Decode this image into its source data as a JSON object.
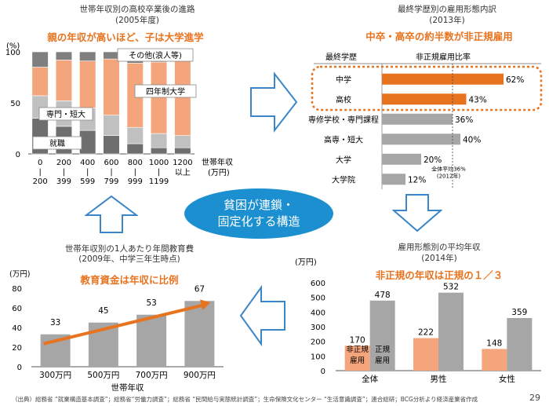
{
  "page_number": "29",
  "source_note": "（出典）総務省 “就業構造基本調査”；総務省“労働力調査”；総務省 “民間給与実態統計調査”；生命保険文化センター “生活意識調査”；連合総研；BCG分析より経済産業省作成",
  "center_oval": {
    "line1": "貧困が連鎖・",
    "line2": "固定化する構造"
  },
  "colors": {
    "orange": "#f4a57b",
    "orange_dark": "#e8731f",
    "gray": "#a6a6a6",
    "gray_dark": "#7f7f7f",
    "blue": "#1b8fcf",
    "arrow_outline": "#3a86c8"
  },
  "icons": [
    "arrow-right-icon",
    "arrow-down-icon",
    "arrow-left-icon",
    "arrow-up-icon"
  ],
  "chart_data": [
    {
      "id": "top-left",
      "type": "bar",
      "stacked": true,
      "title": "世帯年収別の高校卒業後の進路",
      "subtitle": "(2005年度)",
      "headline": "親の年収が高いほど、子は大学進学",
      "ylabel": "(%)",
      "xlabel": "世帯年収",
      "xunit": "(万円)",
      "ylim": [
        0,
        100
      ],
      "yticks": [
        "100",
        "50",
        "0"
      ],
      "categories": [
        {
          "top": "0",
          "sep": "|",
          "bottom": "200"
        },
        {
          "top": "200",
          "sep": "|",
          "bottom": "399"
        },
        {
          "top": "400",
          "sep": "|",
          "bottom": "599"
        },
        {
          "top": "600",
          "sep": "|",
          "bottom": "799"
        },
        {
          "top": "800",
          "sep": "|",
          "bottom": "999"
        },
        {
          "top": "1000",
          "sep": "|",
          "bottom": "1199"
        },
        {
          "top": "1200",
          "sep": "",
          "bottom": "以上"
        }
      ],
      "series": [
        {
          "name": "就職",
          "values": [
            35,
            27,
            23,
            18,
            10,
            6,
            6
          ]
        },
        {
          "name": "専門・短大",
          "values": [
            22,
            25,
            22,
            20,
            16,
            14,
            12
          ]
        },
        {
          "name": "四年制大学",
          "values": [
            28,
            40,
            46,
            55,
            63,
            70,
            74
          ]
        },
        {
          "name": "その他(浪人等)",
          "values": [
            15,
            8,
            9,
            7,
            11,
            10,
            8
          ]
        }
      ],
      "labels": {
        "shushoku": "就職",
        "senmon": "専門・短大",
        "daigaku": "四年制大学",
        "sonota": "その他(浪人等)"
      }
    },
    {
      "id": "top-right",
      "type": "bar",
      "orientation": "horizontal",
      "title": "最終学歴別の雇用形態内訳",
      "subtitle": "(2013年)",
      "headline": "中卒・高卒の約半数が非正規雇用",
      "col_header_1": "最終学歴",
      "col_header_2": "非正規雇用比率",
      "categories": [
        "中学",
        "高校",
        "専修学校・専門課程",
        "高専・短大",
        "大学",
        "大学院"
      ],
      "values": [
        62,
        43,
        36,
        40,
        20,
        12
      ],
      "value_labels": [
        "62%",
        "43%",
        "36%",
        "40%",
        "20%",
        "12%"
      ],
      "highlight": [
        true,
        true,
        false,
        false,
        false,
        false
      ],
      "avg_value": 36,
      "avg_label_1": "全体平均36%",
      "avg_label_2": "(2012年)"
    },
    {
      "id": "bottom-right",
      "type": "bar",
      "title": "雇用形態別の平均年収",
      "subtitle": "(2014年)",
      "headline": "非正規の年収は正規の１／３",
      "ylabel": "(万円)",
      "ylim": [
        0,
        600
      ],
      "yticks": [
        "600",
        "500",
        "400",
        "300",
        "200",
        "100",
        "0"
      ],
      "categories": [
        "全体",
        "男性",
        "女性"
      ],
      "series": [
        {
          "name": "非正規雇用",
          "values": [
            170,
            222,
            148
          ]
        },
        {
          "name": "正規雇用",
          "values": [
            478,
            532,
            359
          ]
        }
      ],
      "label_irregular": {
        "l1": "非正規",
        "l2": "雇用"
      },
      "label_regular": {
        "l1": "正規",
        "l2": "雇用"
      }
    },
    {
      "id": "bottom-left",
      "type": "bar",
      "title": "世帯年収別の1人あたり年間教育費",
      "subtitle": "(2009年、中学三年生時点)",
      "headline": "教育資金は年収に比例",
      "ylabel": "(万円)",
      "xlabel": "世帯年収",
      "ylim": [
        0,
        80
      ],
      "yticks": [
        "80",
        "60",
        "40",
        "20",
        "0"
      ],
      "categories": [
        "300万円",
        "500万円",
        "700万円",
        "900万円"
      ],
      "values": [
        33,
        45,
        53,
        67
      ]
    }
  ]
}
